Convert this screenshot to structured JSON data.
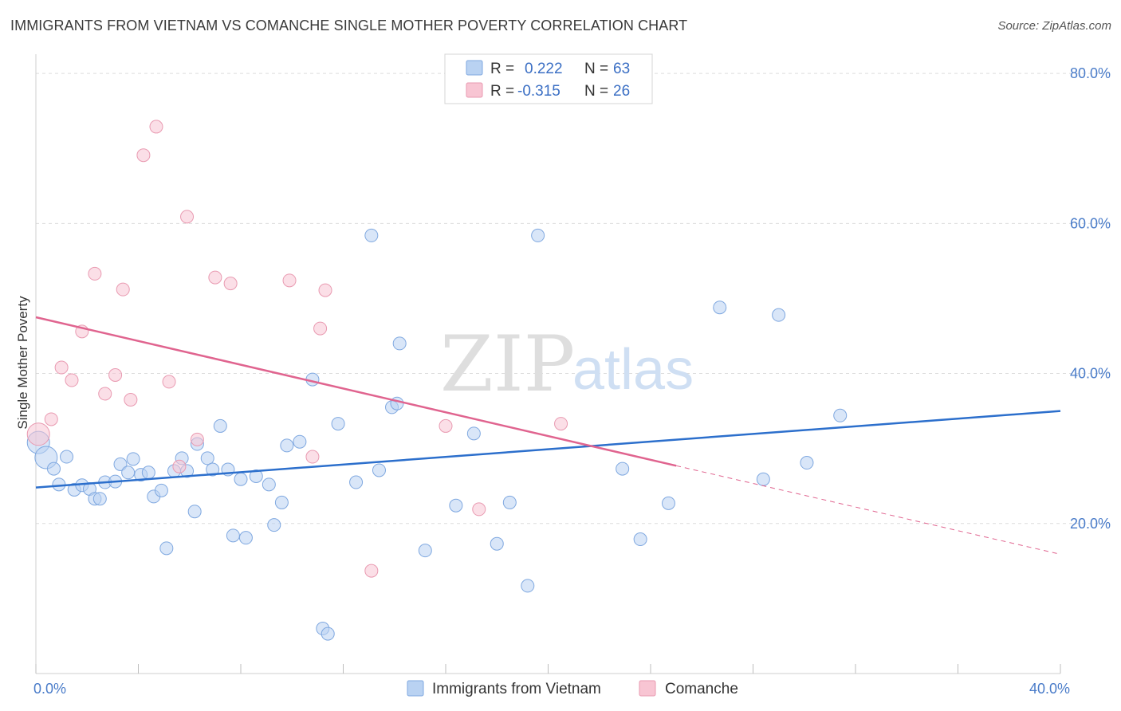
{
  "title": "IMMIGRANTS FROM VIETNAM VS COMANCHE SINGLE MOTHER POVERTY CORRELATION CHART",
  "source": "Source: ZipAtlas.com",
  "watermark": {
    "zip": "ZIP",
    "atlas": "atlas"
  },
  "colors": {
    "blue_fill": "#b9d2f2",
    "blue_stroke": "#7fa8e0",
    "blue_line": "#2c6fcc",
    "pink_fill": "#f8c5d3",
    "pink_stroke": "#e99ab1",
    "pink_line": "#e0648f",
    "tick_label": "#4a7cc9",
    "grid": "#dcdcdc"
  },
  "legend": {
    "r_label": "R =",
    "n_label": "N =",
    "rows": [
      {
        "series": "blue",
        "r": "0.222",
        "n": "63"
      },
      {
        "series": "pink",
        "r": "-0.315",
        "n": "26"
      }
    ]
  },
  "bottom_legend": [
    "Immigrants from Vietnam",
    "Comanche"
  ],
  "chart_data": {
    "type": "scatter",
    "xlabel": "",
    "ylabel": "Single Mother Poverty",
    "xlim": [
      0,
      40
    ],
    "ylim": [
      0,
      80
    ],
    "x_tick_labels": [
      {
        "value": 0,
        "label": "0.0%"
      },
      {
        "value": 40,
        "label": "40.0%"
      }
    ],
    "y_tick_labels": [
      {
        "value": 20,
        "label": "20.0%"
      },
      {
        "value": 40,
        "label": "40.0%"
      },
      {
        "value": 60,
        "label": "60.0%"
      },
      {
        "value": 80,
        "label": "80.0%"
      }
    ],
    "grid": true,
    "legend_position": "top-center",
    "series": [
      {
        "name": "Immigrants from Vietnam",
        "color": "blue",
        "trend": {
          "x": [
            0,
            40
          ],
          "y": [
            24.8,
            35.0
          ],
          "dashed_extension": false
        },
        "points": [
          {
            "x": 0.1,
            "y": 30.8,
            "big": true
          },
          {
            "x": 0.4,
            "y": 28.8,
            "big": true
          },
          {
            "x": 0.7,
            "y": 27.3
          },
          {
            "x": 1.2,
            "y": 28.9
          },
          {
            "x": 0.9,
            "y": 25.2
          },
          {
            "x": 1.5,
            "y": 24.5
          },
          {
            "x": 1.8,
            "y": 25.1
          },
          {
            "x": 2.1,
            "y": 24.6
          },
          {
            "x": 2.3,
            "y": 23.3
          },
          {
            "x": 2.5,
            "y": 23.3
          },
          {
            "x": 2.7,
            "y": 25.5
          },
          {
            "x": 3.1,
            "y": 25.6
          },
          {
            "x": 3.3,
            "y": 27.9
          },
          {
            "x": 3.6,
            "y": 26.8
          },
          {
            "x": 3.8,
            "y": 28.6
          },
          {
            "x": 4.1,
            "y": 26.5
          },
          {
            "x": 4.4,
            "y": 26.8
          },
          {
            "x": 4.6,
            "y": 23.6
          },
          {
            "x": 4.9,
            "y": 24.4
          },
          {
            "x": 5.1,
            "y": 16.7
          },
          {
            "x": 5.4,
            "y": 27.0
          },
          {
            "x": 5.7,
            "y": 28.7
          },
          {
            "x": 5.9,
            "y": 27.0
          },
          {
            "x": 6.2,
            "y": 21.6
          },
          {
            "x": 6.3,
            "y": 30.6
          },
          {
            "x": 6.7,
            "y": 28.7
          },
          {
            "x": 6.9,
            "y": 27.2
          },
          {
            "x": 7.2,
            "y": 33.0
          },
          {
            "x": 7.5,
            "y": 27.2
          },
          {
            "x": 7.7,
            "y": 18.4
          },
          {
            "x": 8.0,
            "y": 25.9
          },
          {
            "x": 8.2,
            "y": 18.1
          },
          {
            "x": 8.6,
            "y": 26.3
          },
          {
            "x": 9.1,
            "y": 25.2
          },
          {
            "x": 9.3,
            "y": 19.8
          },
          {
            "x": 9.6,
            "y": 22.8
          },
          {
            "x": 9.8,
            "y": 30.4
          },
          {
            "x": 10.3,
            "y": 30.9
          },
          {
            "x": 10.8,
            "y": 39.2
          },
          {
            "x": 11.2,
            "y": 6.0
          },
          {
            "x": 11.4,
            "y": 5.3
          },
          {
            "x": 11.8,
            "y": 33.3
          },
          {
            "x": 12.5,
            "y": 25.5
          },
          {
            "x": 13.1,
            "y": 58.4
          },
          {
            "x": 13.4,
            "y": 27.1
          },
          {
            "x": 13.9,
            "y": 35.5
          },
          {
            "x": 14.1,
            "y": 36.0
          },
          {
            "x": 14.2,
            "y": 44.0
          },
          {
            "x": 15.2,
            "y": 16.4
          },
          {
            "x": 16.4,
            "y": 22.4
          },
          {
            "x": 17.1,
            "y": 32.0
          },
          {
            "x": 18.0,
            "y": 17.3
          },
          {
            "x": 18.5,
            "y": 22.8
          },
          {
            "x": 19.2,
            "y": 11.7
          },
          {
            "x": 19.6,
            "y": 58.4
          },
          {
            "x": 22.9,
            "y": 27.3
          },
          {
            "x": 23.6,
            "y": 17.9
          },
          {
            "x": 24.7,
            "y": 22.7
          },
          {
            "x": 26.7,
            "y": 48.8
          },
          {
            "x": 28.4,
            "y": 25.9
          },
          {
            "x": 29.0,
            "y": 47.8
          },
          {
            "x": 30.1,
            "y": 28.1
          },
          {
            "x": 31.4,
            "y": 34.4
          }
        ]
      },
      {
        "name": "Comanche",
        "color": "pink",
        "trend": {
          "x": [
            0,
            25
          ],
          "y": [
            47.5,
            27.7
          ],
          "dashed_extension": true,
          "dash_to": [
            40,
            15.9
          ]
        },
        "points": [
          {
            "x": 0.1,
            "y": 31.9,
            "big": true
          },
          {
            "x": 0.6,
            "y": 33.9
          },
          {
            "x": 1.0,
            "y": 40.8
          },
          {
            "x": 1.4,
            "y": 39.1
          },
          {
            "x": 1.8,
            "y": 45.6
          },
          {
            "x": 2.3,
            "y": 53.3
          },
          {
            "x": 2.7,
            "y": 37.3
          },
          {
            "x": 3.1,
            "y": 39.8
          },
          {
            "x": 3.4,
            "y": 51.2
          },
          {
            "x": 3.7,
            "y": 36.5
          },
          {
            "x": 4.2,
            "y": 69.1
          },
          {
            "x": 4.7,
            "y": 72.9
          },
          {
            "x": 5.2,
            "y": 38.9
          },
          {
            "x": 5.6,
            "y": 27.6
          },
          {
            "x": 5.9,
            "y": 60.9
          },
          {
            "x": 6.3,
            "y": 31.2
          },
          {
            "x": 7.0,
            "y": 52.8
          },
          {
            "x": 7.6,
            "y": 52.0
          },
          {
            "x": 9.9,
            "y": 52.4
          },
          {
            "x": 10.8,
            "y": 28.9
          },
          {
            "x": 11.1,
            "y": 46.0
          },
          {
            "x": 11.3,
            "y": 51.1
          },
          {
            "x": 13.1,
            "y": 13.7
          },
          {
            "x": 16.0,
            "y": 33.0
          },
          {
            "x": 17.3,
            "y": 21.9
          },
          {
            "x": 20.5,
            "y": 33.3
          }
        ]
      }
    ]
  }
}
